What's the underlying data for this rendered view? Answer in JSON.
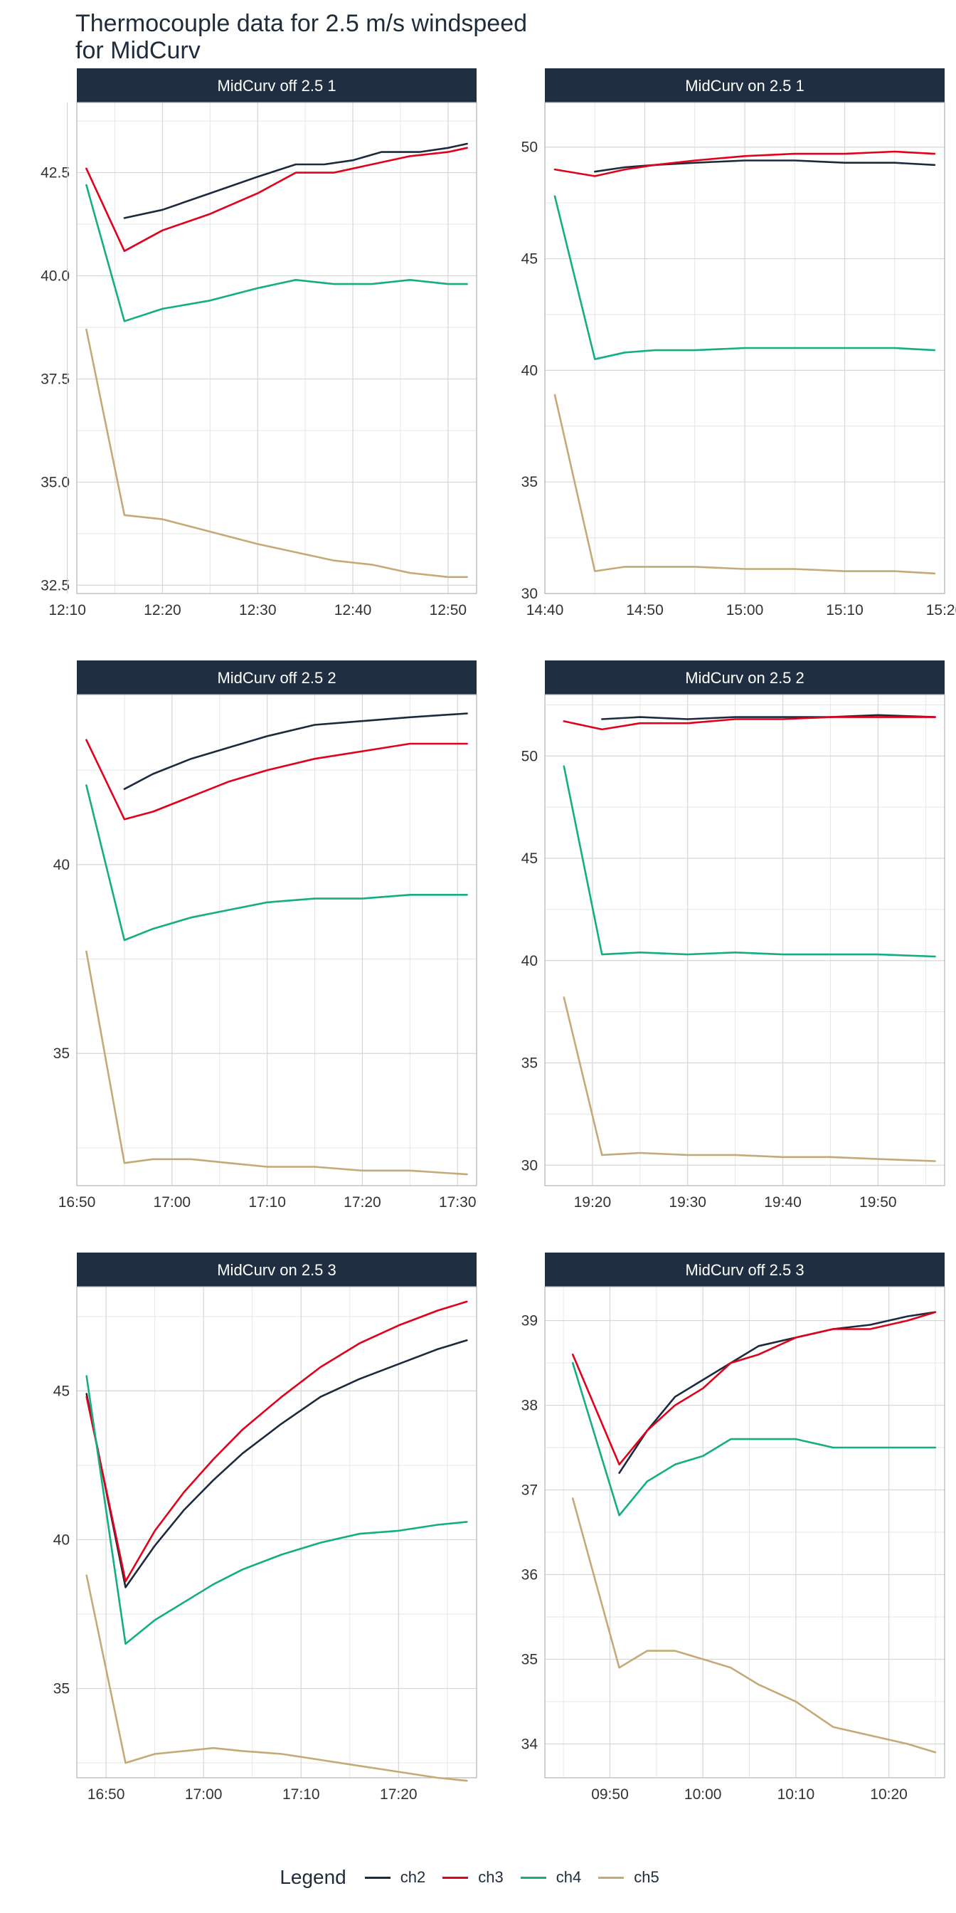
{
  "title_lines": [
    "Thermocouple data for 2.5 m/s windspeed",
    "for MidCurv"
  ],
  "legend": {
    "title": "Legend",
    "items": [
      {
        "label": "ch2",
        "color": "#1b2a3d"
      },
      {
        "label": "ch3",
        "color": "#e3001b"
      },
      {
        "label": "ch4",
        "color": "#13ae83"
      },
      {
        "label": "ch5",
        "color": "#c4aa77"
      }
    ]
  },
  "style": {
    "strip_bg": "#1f2e40",
    "strip_text": "#ffffff",
    "grid_color": "#d6d6d6",
    "border_color": "#b5b5b5",
    "tick_text": "#333333"
  },
  "chart_data": [
    {
      "type": "line",
      "panel": "MidCurv off 2.5 1",
      "xlim": [
        "12:11",
        "12:53"
      ],
      "ylim": [
        32.3,
        44.2
      ],
      "xticks": [
        "12:10",
        "12:20",
        "12:30",
        "12:40",
        "12:50"
      ],
      "yticks": [
        "32.5",
        "35.0",
        "37.5",
        "40.0",
        "42.5"
      ],
      "grid": true,
      "series": [
        {
          "name": "ch2",
          "x": [
            "12:16",
            "12:20",
            "12:25",
            "12:30",
            "12:34",
            "12:37",
            "12:40",
            "12:43",
            "12:47",
            "12:50",
            "12:52"
          ],
          "values": [
            41.4,
            41.6,
            42.0,
            42.4,
            42.7,
            42.7,
            42.8,
            43.0,
            43.0,
            43.1,
            43.2
          ]
        },
        {
          "name": "ch3",
          "x": [
            "12:12",
            "12:16",
            "12:20",
            "12:25",
            "12:30",
            "12:34",
            "12:38",
            "12:42",
            "12:46",
            "12:50",
            "12:52"
          ],
          "values": [
            42.6,
            40.6,
            41.1,
            41.5,
            42.0,
            42.5,
            42.5,
            42.7,
            42.9,
            43.0,
            43.1
          ]
        },
        {
          "name": "ch4",
          "x": [
            "12:12",
            "12:16",
            "12:20",
            "12:25",
            "12:30",
            "12:34",
            "12:38",
            "12:42",
            "12:46",
            "12:50",
            "12:52"
          ],
          "values": [
            42.2,
            38.9,
            39.2,
            39.4,
            39.7,
            39.9,
            39.8,
            39.8,
            39.9,
            39.8,
            39.8
          ]
        },
        {
          "name": "ch5",
          "x": [
            "12:12",
            "12:16",
            "12:20",
            "12:25",
            "12:30",
            "12:34",
            "12:38",
            "12:42",
            "12:46",
            "12:50",
            "12:52"
          ],
          "values": [
            38.7,
            34.2,
            34.1,
            33.8,
            33.5,
            33.3,
            33.1,
            33.0,
            32.8,
            32.7,
            32.7
          ]
        }
      ]
    },
    {
      "type": "line",
      "panel": "MidCurv on 2.5 1",
      "xlim": [
        "14:40",
        "15:20"
      ],
      "ylim": [
        30,
        52
      ],
      "xticks": [
        "14:40",
        "14:50",
        "15:00",
        "15:10",
        "15:20"
      ],
      "yticks": [
        "30",
        "35",
        "40",
        "45",
        "50"
      ],
      "grid": true,
      "series": [
        {
          "name": "ch2",
          "x": [
            "14:45",
            "14:48",
            "14:51",
            "14:55",
            "15:00",
            "15:05",
            "15:10",
            "15:15",
            "15:19"
          ],
          "values": [
            48.9,
            49.1,
            49.2,
            49.3,
            49.4,
            49.4,
            49.3,
            49.3,
            49.2
          ]
        },
        {
          "name": "ch3",
          "x": [
            "14:41",
            "14:45",
            "14:48",
            "14:51",
            "14:55",
            "15:00",
            "15:05",
            "15:10",
            "15:15",
            "15:19"
          ],
          "values": [
            49.0,
            48.7,
            49.0,
            49.2,
            49.4,
            49.6,
            49.7,
            49.7,
            49.8,
            49.7
          ]
        },
        {
          "name": "ch4",
          "x": [
            "14:41",
            "14:45",
            "14:48",
            "14:51",
            "14:55",
            "15:00",
            "15:05",
            "15:10",
            "15:15",
            "15:19"
          ],
          "values": [
            47.8,
            40.5,
            40.8,
            40.9,
            40.9,
            41.0,
            41.0,
            41.0,
            41.0,
            40.9
          ]
        },
        {
          "name": "ch5",
          "x": [
            "14:41",
            "14:45",
            "14:48",
            "14:51",
            "14:55",
            "15:00",
            "15:05",
            "15:10",
            "15:15",
            "15:19"
          ],
          "values": [
            38.9,
            31.0,
            31.2,
            31.2,
            31.2,
            31.1,
            31.1,
            31.0,
            31.0,
            30.9
          ]
        }
      ]
    },
    {
      "type": "line",
      "panel": "MidCurv off 2.5 2",
      "xlim": [
        "16:50",
        "17:32"
      ],
      "ylim": [
        31.5,
        44.5
      ],
      "xticks": [
        "16:50",
        "17:00",
        "17:10",
        "17:20",
        "17:30"
      ],
      "yticks": [
        "35",
        "40"
      ],
      "grid": true,
      "series": [
        {
          "name": "ch2",
          "x": [
            "16:55",
            "16:58",
            "17:02",
            "17:06",
            "17:10",
            "17:15",
            "17:20",
            "17:25",
            "17:31"
          ],
          "values": [
            42.0,
            42.4,
            42.8,
            43.1,
            43.4,
            43.7,
            43.8,
            43.9,
            44.0
          ]
        },
        {
          "name": "ch3",
          "x": [
            "16:51",
            "16:55",
            "16:58",
            "17:02",
            "17:06",
            "17:10",
            "17:15",
            "17:20",
            "17:25",
            "17:31"
          ],
          "values": [
            43.3,
            41.2,
            41.4,
            41.8,
            42.2,
            42.5,
            42.8,
            43.0,
            43.2,
            43.2
          ]
        },
        {
          "name": "ch4",
          "x": [
            "16:51",
            "16:55",
            "16:58",
            "17:02",
            "17:06",
            "17:10",
            "17:15",
            "17:20",
            "17:25",
            "17:31"
          ],
          "values": [
            42.1,
            38.0,
            38.3,
            38.6,
            38.8,
            39.0,
            39.1,
            39.1,
            39.2,
            39.2
          ]
        },
        {
          "name": "ch5",
          "x": [
            "16:51",
            "16:55",
            "16:58",
            "17:02",
            "17:06",
            "17:10",
            "17:15",
            "17:20",
            "17:25",
            "17:31"
          ],
          "values": [
            37.7,
            32.1,
            32.2,
            32.2,
            32.1,
            32.0,
            32.0,
            31.9,
            31.9,
            31.8
          ]
        }
      ]
    },
    {
      "type": "line",
      "panel": "MidCurv on 2.5 2",
      "xlim": [
        "19:15",
        "19:57"
      ],
      "ylim": [
        29,
        53
      ],
      "xticks": [
        "19:20",
        "19:30",
        "19:40",
        "19:50"
      ],
      "yticks": [
        "30",
        "35",
        "40",
        "45",
        "50"
      ],
      "grid": true,
      "series": [
        {
          "name": "ch2",
          "x": [
            "19:21",
            "19:25",
            "19:30",
            "19:35",
            "19:40",
            "19:45",
            "19:50",
            "19:56"
          ],
          "values": [
            51.8,
            51.9,
            51.8,
            51.9,
            51.9,
            51.9,
            52.0,
            51.9
          ]
        },
        {
          "name": "ch3",
          "x": [
            "19:17",
            "19:21",
            "19:25",
            "19:30",
            "19:35",
            "19:40",
            "19:45",
            "19:50",
            "19:56"
          ],
          "values": [
            51.7,
            51.3,
            51.6,
            51.6,
            51.8,
            51.8,
            51.9,
            51.9,
            51.9
          ]
        },
        {
          "name": "ch4",
          "x": [
            "19:17",
            "19:21",
            "19:25",
            "19:30",
            "19:35",
            "19:40",
            "19:45",
            "19:50",
            "19:56"
          ],
          "values": [
            49.5,
            40.3,
            40.4,
            40.3,
            40.4,
            40.3,
            40.3,
            40.3,
            40.2
          ]
        },
        {
          "name": "ch5",
          "x": [
            "19:17",
            "19:21",
            "19:25",
            "19:30",
            "19:35",
            "19:40",
            "19:45",
            "19:50",
            "19:56"
          ],
          "values": [
            38.2,
            30.5,
            30.6,
            30.5,
            30.5,
            30.4,
            30.4,
            30.3,
            30.2
          ]
        }
      ]
    },
    {
      "type": "line",
      "panel": "MidCurv on 2.5 3",
      "xlim": [
        "16:47",
        "17:28"
      ],
      "ylim": [
        32,
        48.5
      ],
      "xticks": [
        "16:50",
        "17:00",
        "17:10",
        "17:20"
      ],
      "yticks": [
        "35",
        "40",
        "45"
      ],
      "grid": true,
      "series": [
        {
          "name": "ch2",
          "x": [
            "16:48",
            "16:52",
            "16:55",
            "16:58",
            "17:01",
            "17:04",
            "17:08",
            "17:12",
            "17:16",
            "17:20",
            "17:24",
            "17:27"
          ],
          "values": [
            44.9,
            38.4,
            39.8,
            41.0,
            42.0,
            42.9,
            43.9,
            44.8,
            45.4,
            45.9,
            46.4,
            46.7
          ]
        },
        {
          "name": "ch3",
          "x": [
            "16:48",
            "16:52",
            "16:55",
            "16:58",
            "17:01",
            "17:04",
            "17:08",
            "17:12",
            "17:16",
            "17:20",
            "17:24",
            "17:27"
          ],
          "values": [
            44.8,
            38.6,
            40.3,
            41.6,
            42.7,
            43.7,
            44.8,
            45.8,
            46.6,
            47.2,
            47.7,
            48.0
          ]
        },
        {
          "name": "ch4",
          "x": [
            "16:48",
            "16:52",
            "16:55",
            "16:58",
            "17:01",
            "17:04",
            "17:08",
            "17:12",
            "17:16",
            "17:20",
            "17:24",
            "17:27"
          ],
          "values": [
            45.5,
            36.5,
            37.3,
            37.9,
            38.5,
            39.0,
            39.5,
            39.9,
            40.2,
            40.3,
            40.5,
            40.6
          ]
        },
        {
          "name": "ch5",
          "x": [
            "16:48",
            "16:52",
            "16:55",
            "16:58",
            "17:01",
            "17:04",
            "17:08",
            "17:12",
            "17:16",
            "17:20",
            "17:24",
            "17:27"
          ],
          "values": [
            38.8,
            32.5,
            32.8,
            32.9,
            33.0,
            32.9,
            32.8,
            32.6,
            32.4,
            32.2,
            32.0,
            31.9
          ]
        }
      ]
    },
    {
      "type": "line",
      "panel": "MidCurv off 2.5 3",
      "xlim": [
        "09:43",
        "10:26"
      ],
      "ylim": [
        33.6,
        39.4
      ],
      "xticks": [
        "09:50",
        "10:00",
        "10:10",
        "10:20"
      ],
      "yticks": [
        "34",
        "35",
        "36",
        "37",
        "38",
        "39"
      ],
      "grid": true,
      "series": [
        {
          "name": "ch2",
          "x": [
            "09:51",
            "09:54",
            "09:57",
            "10:00",
            "10:03",
            "10:06",
            "10:10",
            "10:14",
            "10:18",
            "10:22",
            "10:25"
          ],
          "values": [
            37.2,
            37.7,
            38.1,
            38.3,
            38.5,
            38.7,
            38.8,
            38.9,
            38.95,
            39.05,
            39.1
          ]
        },
        {
          "name": "ch3",
          "x": [
            "09:46",
            "09:51",
            "09:54",
            "09:57",
            "10:00",
            "10:03",
            "10:06",
            "10:10",
            "10:14",
            "10:18",
            "10:22",
            "10:25"
          ],
          "values": [
            38.6,
            37.3,
            37.7,
            38.0,
            38.2,
            38.5,
            38.6,
            38.8,
            38.9,
            38.9,
            39.0,
            39.1
          ]
        },
        {
          "name": "ch4",
          "x": [
            "09:46",
            "09:51",
            "09:54",
            "09:57",
            "10:00",
            "10:03",
            "10:06",
            "10:10",
            "10:14",
            "10:18",
            "10:22",
            "10:25"
          ],
          "values": [
            38.5,
            36.7,
            37.1,
            37.3,
            37.4,
            37.6,
            37.6,
            37.6,
            37.5,
            37.5,
            37.5,
            37.5
          ]
        },
        {
          "name": "ch5",
          "x": [
            "09:46",
            "09:51",
            "09:54",
            "09:57",
            "10:00",
            "10:03",
            "10:06",
            "10:10",
            "10:14",
            "10:18",
            "10:22",
            "10:25"
          ],
          "values": [
            36.9,
            34.9,
            35.1,
            35.1,
            35.0,
            34.9,
            34.7,
            34.5,
            34.2,
            34.1,
            34.0,
            33.9
          ]
        }
      ]
    }
  ]
}
